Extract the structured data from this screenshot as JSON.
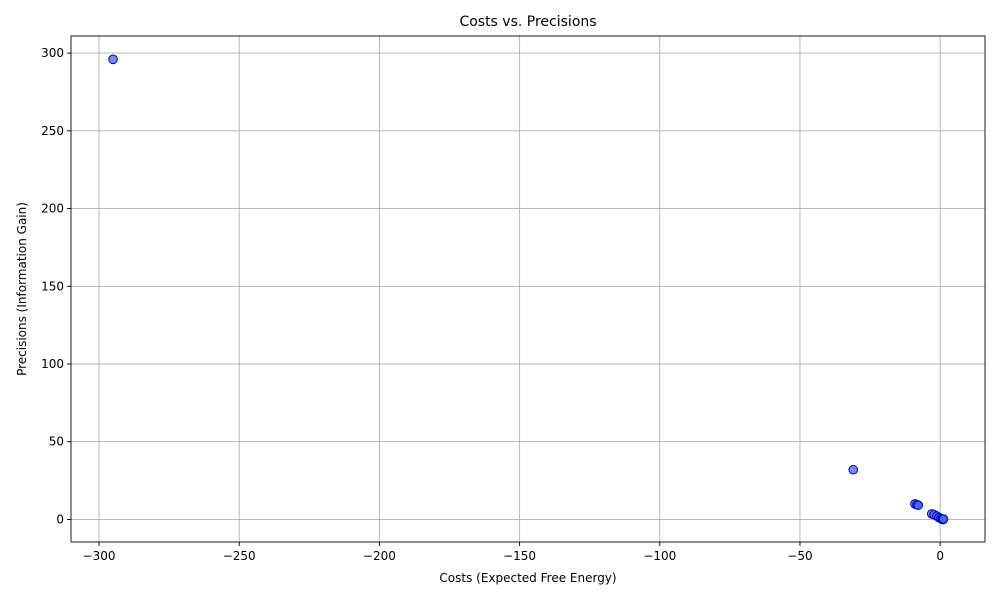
{
  "chart_data": {
    "type": "scatter",
    "title": "Costs vs. Precisions",
    "xlabel": "Costs (Expected Free Energy)",
    "ylabel": "Precisions (Information Gain)",
    "xlim": [
      -310,
      16
    ],
    "ylim": [
      -14.5,
      311
    ],
    "xticks": [
      -300,
      -250,
      -200,
      -150,
      -100,
      -50,
      0
    ],
    "yticks": [
      0,
      50,
      100,
      150,
      200,
      250,
      300
    ],
    "grid": true,
    "legend": "none",
    "point_color": "#4169e1",
    "point_edge_color": "#0000cd",
    "points": [
      {
        "x": -295,
        "y": 296
      },
      {
        "x": -31,
        "y": 32
      },
      {
        "x": -9,
        "y": 10
      },
      {
        "x": -8.3,
        "y": 9.6
      },
      {
        "x": -7.8,
        "y": 9.2
      },
      {
        "x": -3,
        "y": 3.6
      },
      {
        "x": -2.2,
        "y": 3.1
      },
      {
        "x": -1.2,
        "y": 2.2
      },
      {
        "x": -0.4,
        "y": 1.2
      },
      {
        "x": 0.3,
        "y": 0.5
      },
      {
        "x": 0.8,
        "y": 0.1
      },
      {
        "x": 1.0,
        "y": -0.1
      },
      {
        "x": 1.2,
        "y": 0.3
      }
    ]
  }
}
